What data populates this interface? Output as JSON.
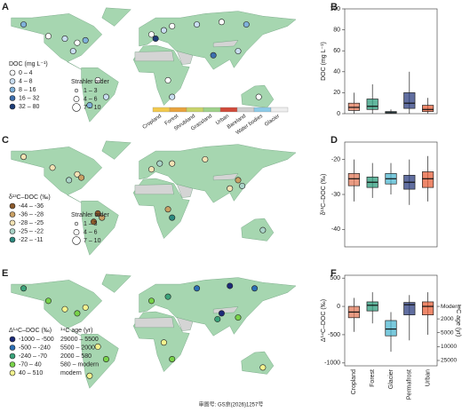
{
  "maps": [
    {
      "letter": "A",
      "legend_title": "DOC (mg L⁻¹)",
      "classes": [
        "0 – 4",
        "4 – 8",
        "8 – 16",
        "16 – 32",
        "32 – 80"
      ],
      "colors": [
        "#ffffff",
        "#c9def0",
        "#7fb1d9",
        "#3d6fae",
        "#1d3d78"
      ],
      "size_title": "Strahler order",
      "sizes": [
        "1 – 3",
        "4 – 6",
        "7 – 10"
      ],
      "sites": [
        [
          -120,
          48,
          0
        ],
        [
          -100,
          45,
          1
        ],
        [
          -85,
          40,
          0
        ],
        [
          -75,
          43,
          2
        ],
        [
          -90,
          30,
          1
        ],
        [
          -150,
          62,
          2
        ],
        [
          -60,
          -5,
          0
        ],
        [
          -50,
          -25,
          1
        ],
        [
          5,
          50,
          0
        ],
        [
          20,
          55,
          1
        ],
        [
          30,
          60,
          0
        ],
        [
          60,
          62,
          1
        ],
        [
          90,
          65,
          0
        ],
        [
          120,
          62,
          2
        ],
        [
          110,
          30,
          1
        ],
        [
          80,
          25,
          3
        ],
        [
          25,
          -5,
          0
        ],
        [
          30,
          -25,
          1
        ],
        [
          135,
          -25,
          0
        ],
        [
          -70,
          -35,
          2
        ],
        [
          10,
          45,
          4
        ]
      ]
    },
    {
      "letter": "C",
      "legend_title": "δ¹³C–DOC (‰)",
      "classes": [
        "-44 – -36",
        "-36 – -28",
        "-28 – -25",
        "-25 – -22",
        "-22 – -11"
      ],
      "colors": [
        "#8c5a2c",
        "#c9a064",
        "#f3e2b4",
        "#a9d3c7",
        "#2c8a80"
      ],
      "size_title": "Strahler order",
      "sizes": [
        "1 – 3",
        "4 – 6",
        "7 – 10"
      ],
      "sites": [
        [
          -85,
          42,
          2
        ],
        [
          -95,
          35,
          3
        ],
        [
          -80,
          38,
          1
        ],
        [
          -115,
          50,
          2
        ],
        [
          -60,
          -5,
          0
        ],
        [
          -55,
          -10,
          1
        ],
        [
          -65,
          -15,
          0
        ],
        [
          5,
          48,
          2
        ],
        [
          15,
          55,
          3
        ],
        [
          30,
          55,
          2
        ],
        [
          70,
          60,
          2
        ],
        [
          110,
          35,
          1
        ],
        [
          115,
          28,
          3
        ],
        [
          100,
          25,
          2
        ],
        [
          25,
          0,
          1
        ],
        [
          30,
          -10,
          4
        ],
        [
          140,
          -25,
          3
        ],
        [
          -150,
          63,
          2
        ]
      ]
    },
    {
      "letter": "E",
      "legend_title": "Δ¹⁴C–DOC (‰)",
      "age_title": "¹⁴C age (yr)",
      "classes": [
        "-1000 – -500",
        "-500 – -240",
        "-240 – -70",
        "-70 – 40",
        "40 – 510"
      ],
      "age_classes": [
        "29000 – 5500",
        "5500 – 2000",
        "2000 – 580",
        "580 – modern",
        "modern"
      ],
      "colors": [
        "#1c2a78",
        "#2b6fb5",
        "#3aa37a",
        "#78d24a",
        "#f3f38e"
      ],
      "sites": [
        [
          -120,
          50,
          3
        ],
        [
          -100,
          40,
          4
        ],
        [
          -85,
          35,
          3
        ],
        [
          -75,
          42,
          4
        ],
        [
          -150,
          65,
          2
        ],
        [
          -60,
          -5,
          4
        ],
        [
          -50,
          -20,
          3
        ],
        [
          5,
          50,
          3
        ],
        [
          25,
          55,
          2
        ],
        [
          60,
          65,
          1
        ],
        [
          100,
          68,
          0
        ],
        [
          130,
          65,
          1
        ],
        [
          110,
          30,
          3
        ],
        [
          85,
          28,
          2
        ],
        [
          90,
          35,
          0
        ],
        [
          20,
          0,
          4
        ],
        [
          30,
          -20,
          3
        ],
        [
          140,
          -30,
          4
        ],
        [
          -70,
          -40,
          4
        ]
      ]
    }
  ],
  "landcover": {
    "labels": [
      "Cropland",
      "Forest",
      "Shrubland",
      "Grassland",
      "Urban",
      "Bareland",
      "Water bodies",
      "Glacier"
    ],
    "colors": [
      "#f2c94c",
      "#e8a33d",
      "#c8d36a",
      "#9fd18b",
      "#d04a3a",
      "#cfcfcf",
      "#8ccbe8",
      "#eeeeee"
    ]
  },
  "footer": "审图号: GS京(2026)1257号",
  "chart_data": [
    {
      "letter": "B",
      "type": "box",
      "ylabel": "DOC (mg L⁻¹)",
      "categories": [
        null,
        null,
        null,
        null,
        null
      ],
      "colors": [
        "#e07a5a",
        "#2f9e7d",
        "#4fb8d1",
        "#2c3e80",
        "#e8603a"
      ],
      "ylim": [
        0,
        100
      ],
      "yticks": [
        0,
        20,
        40,
        60,
        80,
        100
      ],
      "whisker_low": [
        0,
        0,
        0,
        0,
        0
      ],
      "q1": [
        3,
        4,
        0.5,
        5,
        2
      ],
      "median": [
        6,
        7,
        1,
        10,
        4
      ],
      "q3": [
        10,
        14,
        2,
        20,
        8
      ],
      "whisker_high": [
        20,
        28,
        4,
        40,
        15
      ]
    },
    {
      "letter": "D",
      "type": "box",
      "ylabel": "δ¹³C–DOC (‰)",
      "categories": [
        null,
        null,
        null,
        null,
        null
      ],
      "colors": [
        "#e07a5a",
        "#2f9e7d",
        "#4fb8d1",
        "#2c3e80",
        "#e8603a"
      ],
      "ylim": [
        -45,
        -15
      ],
      "yticks": [
        -20,
        -30,
        -40
      ],
      "whisker_low": [
        -32,
        -31,
        -30,
        -33,
        -32
      ],
      "q1": [
        -27.5,
        -28,
        -27,
        -28.5,
        -28
      ],
      "median": [
        -25.5,
        -26.5,
        -25.5,
        -26.5,
        -25.5
      ],
      "q3": [
        -24,
        -25,
        -24,
        -24.5,
        -23.5
      ],
      "whisker_high": [
        -20,
        -21,
        -21,
        -20,
        -19
      ]
    },
    {
      "letter": "F",
      "type": "box",
      "ylabel": "Δ¹⁴C–DOC (‰)",
      "y2label": "¹⁴C age (yr)",
      "y2scale": "radiocarbon",
      "categories": [
        "Cropland",
        "Forest",
        "Glacier",
        "Permafrost",
        "Urban"
      ],
      "colors": [
        "#e07a5a",
        "#2f9e7d",
        "#4fb8d1",
        "#2c3e80",
        "#e8603a"
      ],
      "ylim": [
        -1050,
        550
      ],
      "yticks": [
        500,
        0,
        -500,
        -1000
      ],
      "y2ticks": [
        {
          "value": 0,
          "label": "Modern"
        },
        2000,
        5000,
        10000,
        25000
      ],
      "whisker_low": [
        -450,
        -300,
        -800,
        -600,
        -500
      ],
      "q1": [
        -200,
        -80,
        -520,
        -150,
        -150
      ],
      "median": [
        -100,
        20,
        -400,
        30,
        0
      ],
      "q3": [
        0,
        80,
        -250,
        70,
        80
      ],
      "whisker_high": [
        150,
        250,
        -100,
        200,
        250
      ]
    }
  ]
}
